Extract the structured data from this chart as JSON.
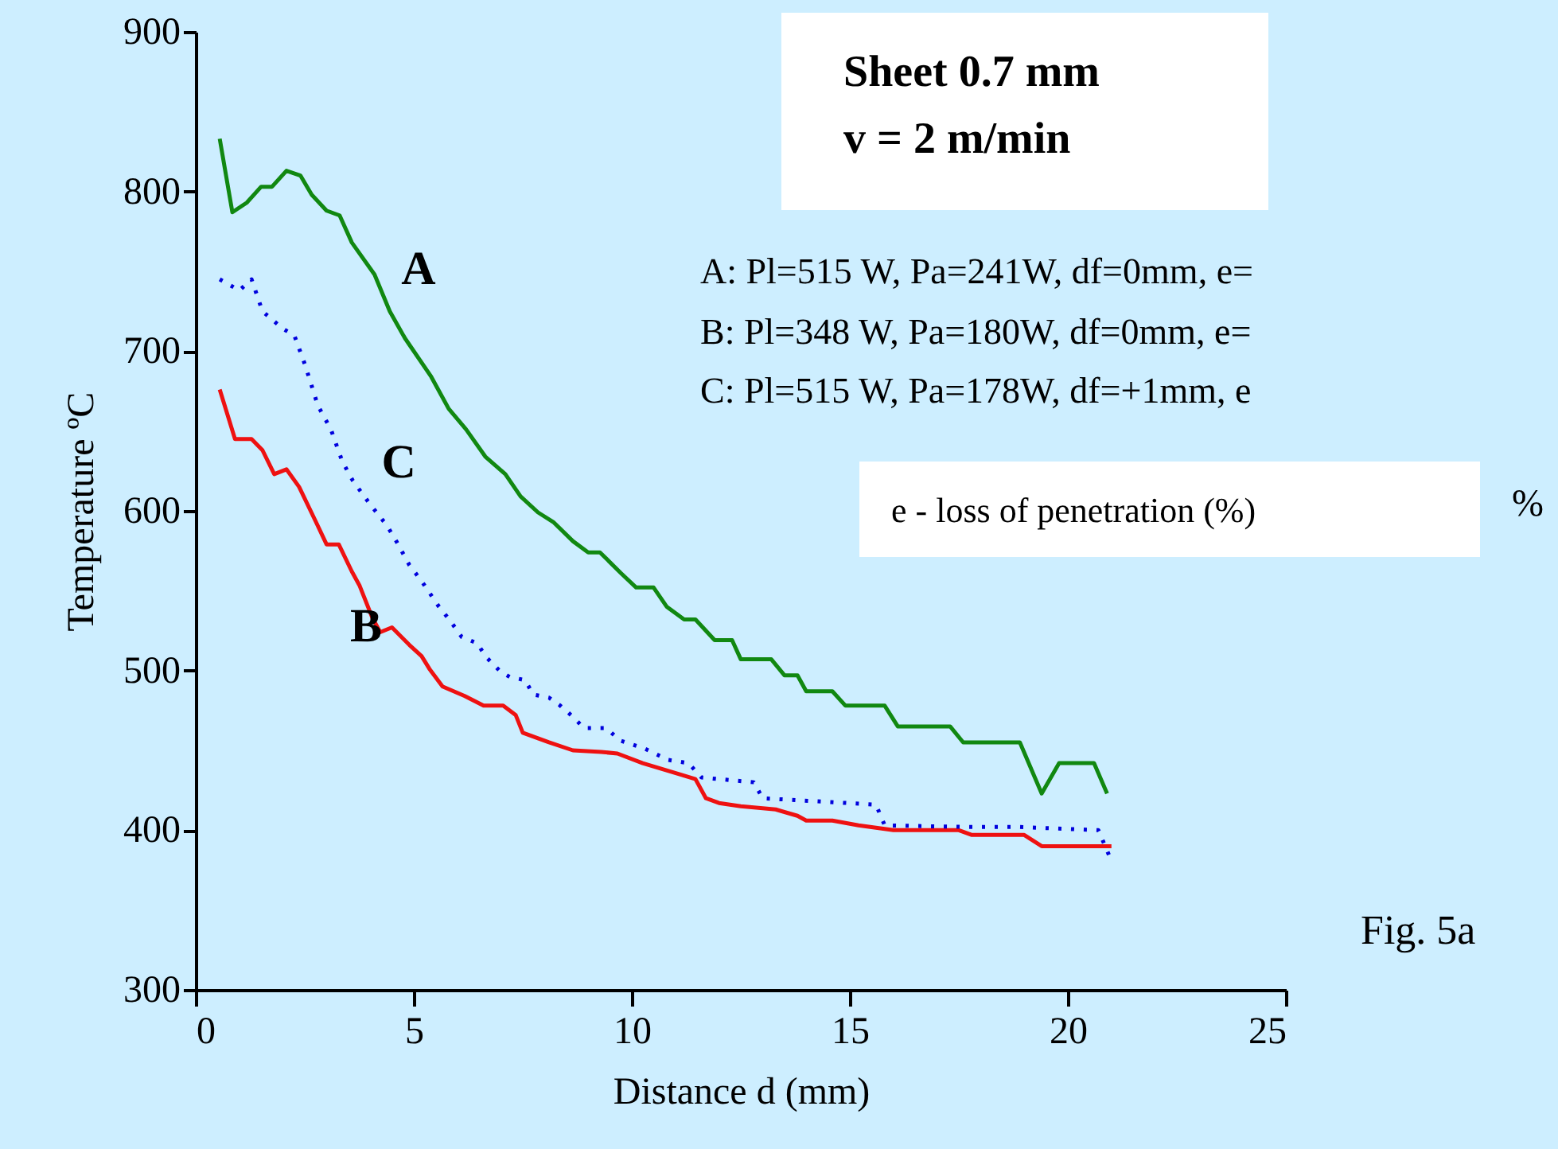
{
  "chart_data": {
    "type": "line",
    "xlabel": "Distance d (mm)",
    "ylabel": "Temperature ºC",
    "xlim": [
      0,
      25
    ],
    "xticks": [
      0,
      5,
      10,
      15,
      20,
      25
    ],
    "ylim": [
      300,
      900
    ],
    "yticks": [
      300,
      400,
      500,
      600,
      700,
      800,
      900
    ],
    "marker": "none",
    "series": [
      {
        "name": "A",
        "color": "#118811",
        "line_style": "solid",
        "x": [
          0.55,
          0.84,
          1.17,
          1.5,
          1.75,
          2.08,
          2.4,
          2.66,
          3.0,
          3.3,
          3.58,
          4.1,
          4.45,
          4.8,
          5.4,
          5.8,
          6.2,
          6.64,
          7.1,
          7.45,
          7.85,
          8.2,
          8.65,
          9.0,
          9.27,
          9.75,
          10.1,
          10.5,
          10.8,
          11.2,
          11.46,
          11.9,
          12.3,
          12.5,
          13.2,
          13.5,
          13.8,
          14.0,
          14.6,
          14.9,
          15.8,
          16.1,
          17.3,
          17.6,
          18.9,
          19.4,
          19.8,
          20.6,
          20.9
        ],
        "values": [
          833,
          787,
          793,
          803,
          803,
          813,
          810,
          798,
          788,
          785,
          768,
          748,
          725,
          708,
          684,
          664,
          651,
          634,
          623,
          609,
          599,
          593,
          581,
          574,
          574,
          561,
          552,
          552,
          540,
          532,
          532,
          519,
          519,
          507,
          507,
          497,
          497,
          487,
          487,
          478,
          478,
          465,
          465,
          455,
          455,
          423,
          442,
          442,
          423
        ]
      },
      {
        "name": "B",
        "color": "#ee1111",
        "line_style": "solid",
        "x": [
          0.55,
          0.9,
          1.28,
          1.53,
          1.8,
          2.08,
          2.37,
          2.74,
          3.0,
          3.28,
          3.58,
          3.76,
          4.05,
          4.23,
          4.5,
          4.9,
          5.18,
          5.36,
          5.66,
          6.17,
          6.6,
          7.05,
          7.34,
          7.5,
          8.1,
          8.65,
          9.3,
          9.67,
          10.25,
          11.1,
          11.46,
          11.7,
          12.0,
          12.5,
          13.3,
          13.8,
          14.0,
          14.6,
          15.2,
          16.0,
          17.5,
          17.8,
          19.0,
          19.4,
          21.0
        ],
        "values": [
          676,
          645,
          645,
          638,
          623,
          626,
          615,
          594,
          579,
          579,
          562,
          553,
          533,
          524,
          527,
          516,
          509,
          501,
          490,
          484,
          478,
          478,
          472,
          461,
          455,
          450,
          449,
          448,
          442,
          435,
          432,
          420,
          417,
          415,
          413,
          409,
          406,
          406,
          403,
          400,
          400,
          397,
          397,
          390,
          390
        ]
      },
      {
        "name": "C",
        "color": "#0000dd",
        "line_style": "dotted",
        "x": [
          0.55,
          1.0,
          1.28,
          1.53,
          2.0,
          2.26,
          2.5,
          2.8,
          3.1,
          3.36,
          3.6,
          4.0,
          4.38,
          4.6,
          4.9,
          5.18,
          5.55,
          5.84,
          6.1,
          6.46,
          6.64,
          7.0,
          7.2,
          7.55,
          7.74,
          8.1,
          8.36,
          8.65,
          8.9,
          9.4,
          9.75,
          10.3,
          10.84,
          11.3,
          11.6,
          12.8,
          13.0,
          15.6,
          15.8,
          17.8,
          18.9,
          20.7,
          20.95
        ],
        "values": [
          745,
          738,
          745,
          725,
          714,
          710,
          692,
          666,
          651,
          631,
          619,
          604,
          591,
          581,
          566,
          556,
          541,
          531,
          521,
          517,
          509,
          499,
          496,
          494,
          485,
          483,
          478,
          471,
          464,
          464,
          456,
          451,
          444,
          442,
          433,
          430,
          420,
          416,
          403,
          402,
          402,
          400,
          384
        ]
      }
    ],
    "annotations": [
      "Sheet 0.7 mm",
      "v = 2 m/min",
      "A: Pl=515 W, Pa=241W, df=0mm, e=",
      "B: Pl=348 W, Pa=180W, df=0mm, e=",
      "C: Pl=515 W, Pa=178W, df=+1mm, e",
      "e - loss of penetration (%)",
      "%",
      "Fig. 5a"
    ]
  }
}
